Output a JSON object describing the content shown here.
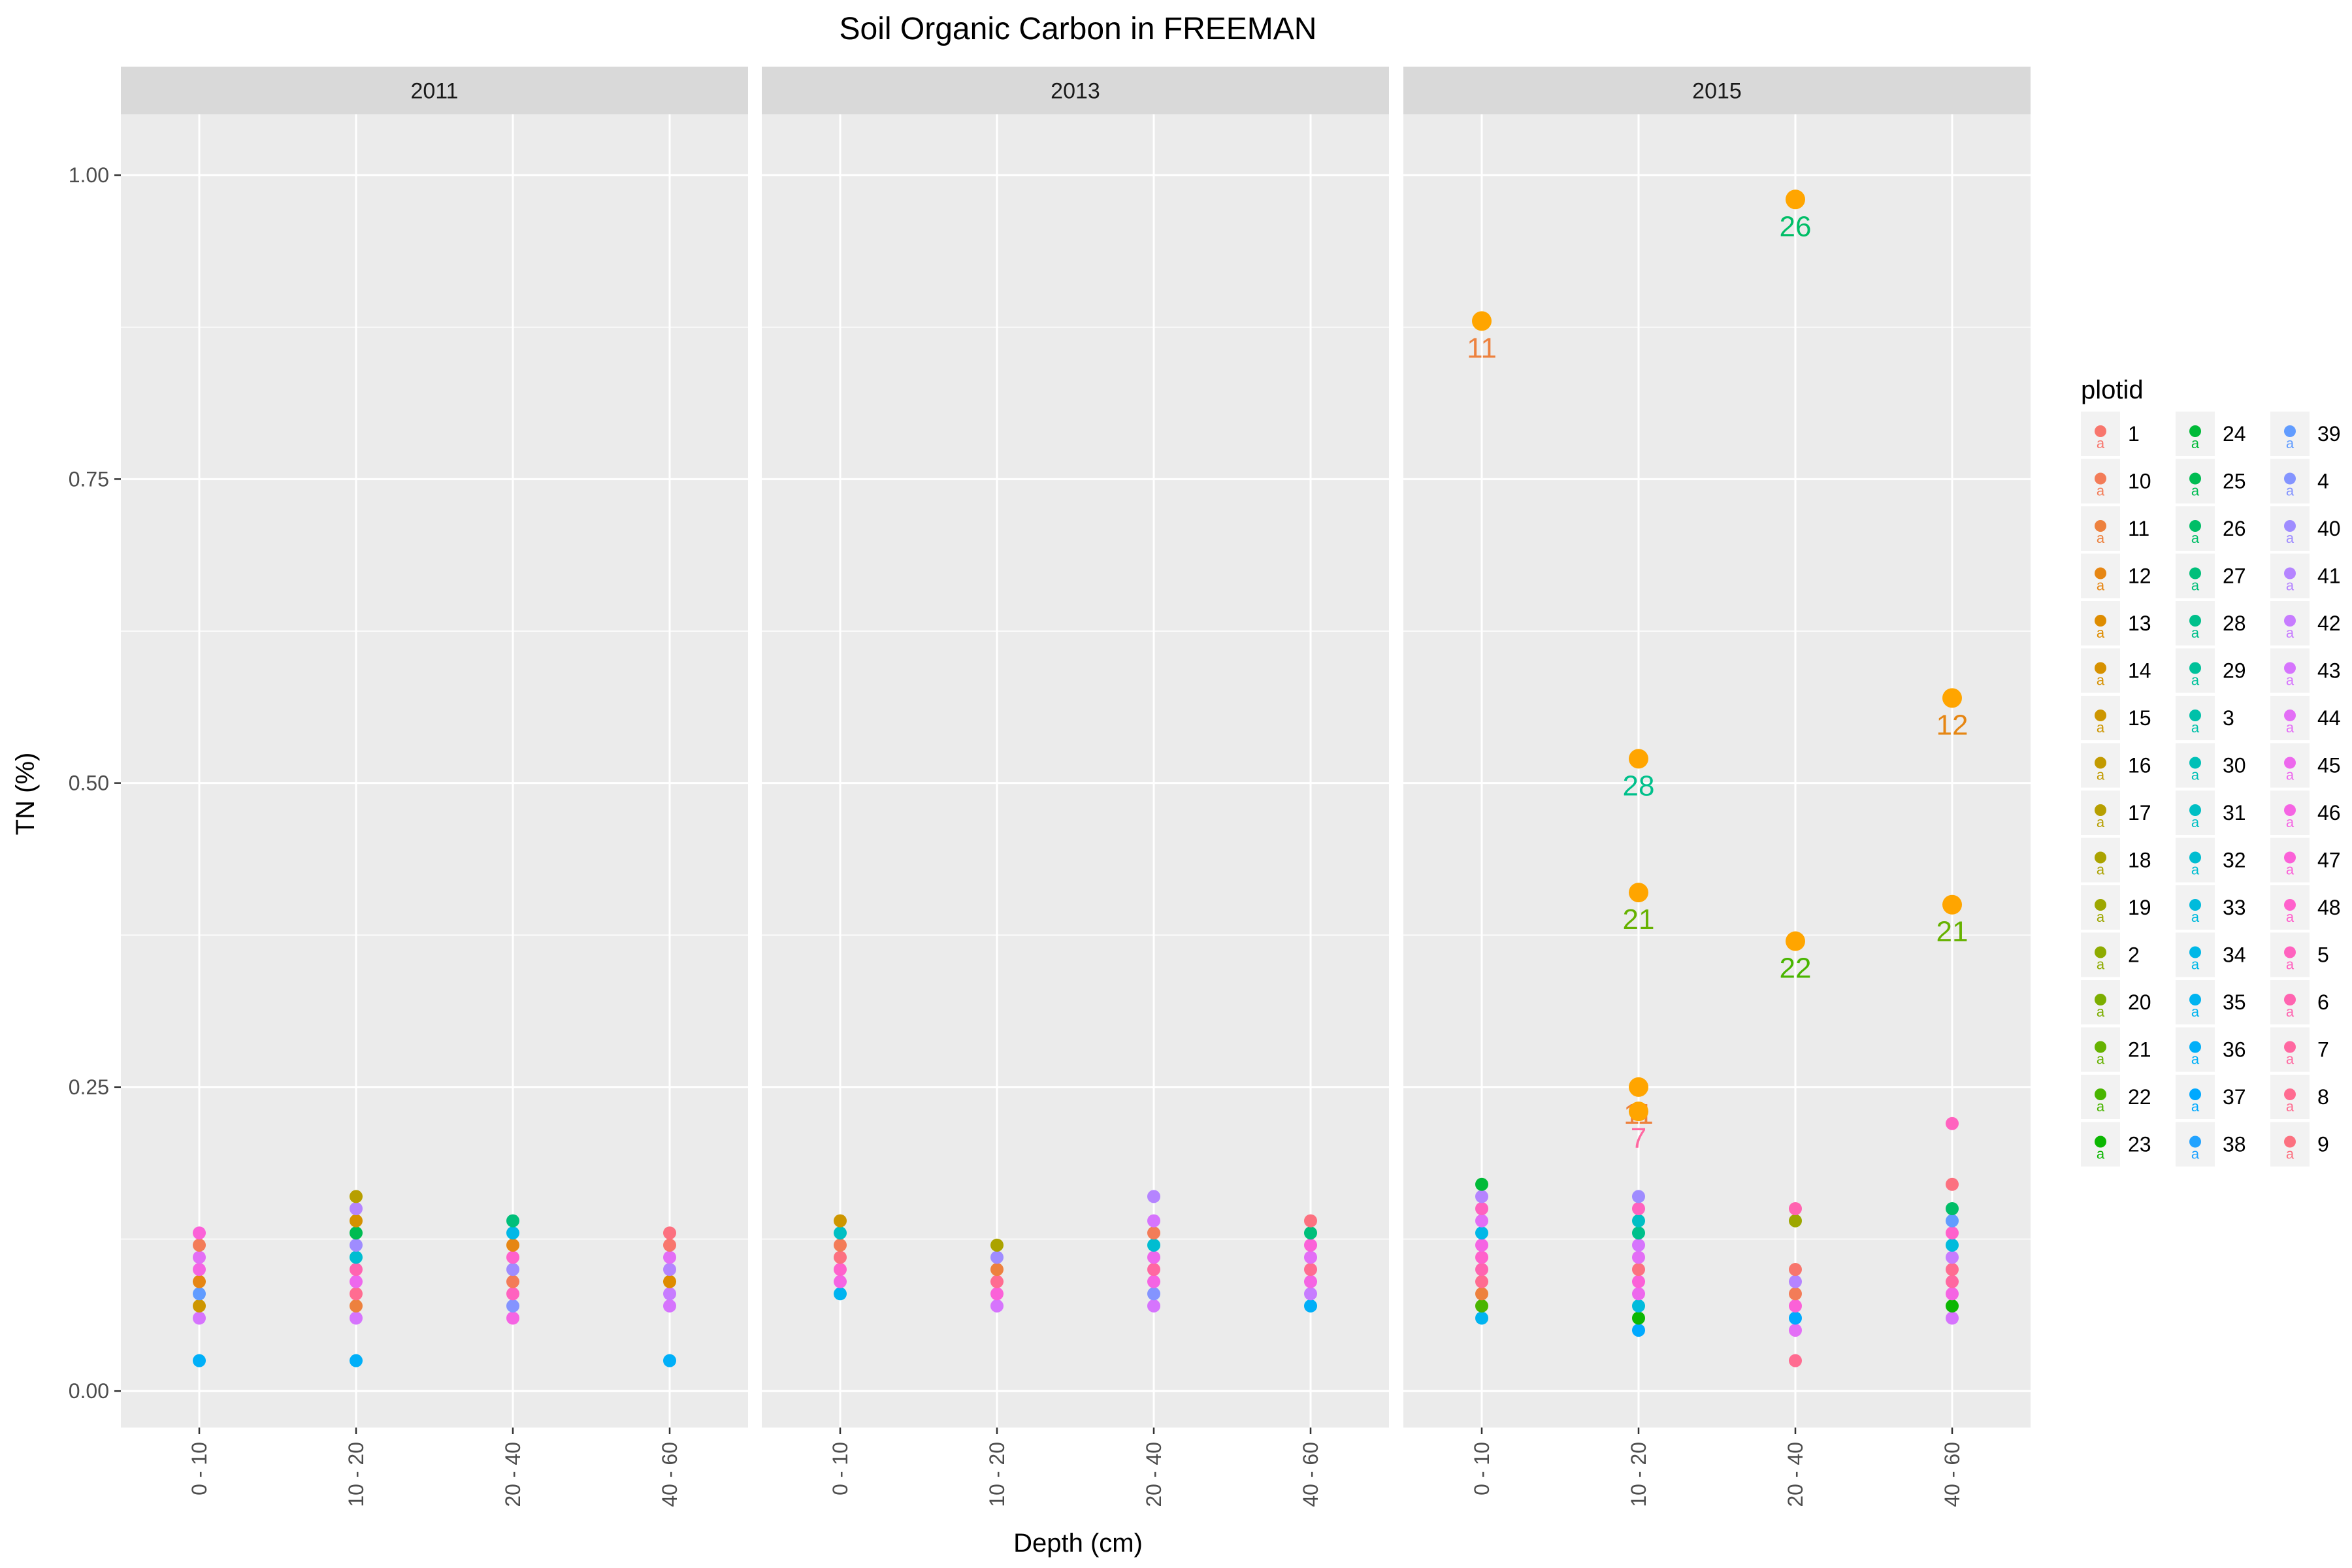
{
  "chart_data": {
    "type": "scatter",
    "title": "Soil Organic Carbon in FREEMAN",
    "xlabel": "Depth (cm)",
    "ylabel": "TN (%)",
    "categories": [
      "0 - 10",
      "10 - 20",
      "20 - 40",
      "40 - 60"
    ],
    "ylim": [
      -0.03,
      1.05
    ],
    "yticks": [
      "0.00",
      "0.25",
      "0.50",
      "0.75",
      "1.00"
    ],
    "grid": true,
    "legend_title": "plotid",
    "legend_position": "right",
    "plotids": [
      "1",
      "10",
      "11",
      "12",
      "13",
      "14",
      "15",
      "16",
      "17",
      "18",
      "19",
      "2",
      "20",
      "21",
      "22",
      "23",
      "24",
      "25",
      "26",
      "27",
      "28",
      "29",
      "3",
      "30",
      "31",
      "32",
      "33",
      "34",
      "35",
      "36",
      "37",
      "38",
      "39",
      "4",
      "40",
      "41",
      "42",
      "43",
      "44",
      "45",
      "46",
      "47",
      "48",
      "5",
      "6",
      "7",
      "8",
      "9"
    ],
    "highlight_color": "#FFA500",
    "panels": [
      {
        "label": "2011",
        "points": [
          {
            "depth": "0 - 10",
            "plotid": "36",
            "tn": 0.025
          },
          {
            "depth": "0 - 10",
            "plotid": "43",
            "tn": 0.06
          },
          {
            "depth": "0 - 10",
            "plotid": "15",
            "tn": 0.07
          },
          {
            "depth": "0 - 10",
            "plotid": "39",
            "tn": 0.08
          },
          {
            "depth": "0 - 10",
            "plotid": "12",
            "tn": 0.09
          },
          {
            "depth": "0 - 10",
            "plotid": "46",
            "tn": 0.1
          },
          {
            "depth": "0 - 10",
            "plotid": "44",
            "tn": 0.11
          },
          {
            "depth": "0 - 10",
            "plotid": "10",
            "tn": 0.12
          },
          {
            "depth": "0 - 10",
            "plotid": "47",
            "tn": 0.13
          },
          {
            "depth": "10 - 20",
            "plotid": "36",
            "tn": 0.025
          },
          {
            "depth": "10 - 20",
            "plotid": "43",
            "tn": 0.06
          },
          {
            "depth": "10 - 20",
            "plotid": "11",
            "tn": 0.07
          },
          {
            "depth": "10 - 20",
            "plotid": "8",
            "tn": 0.08
          },
          {
            "depth": "10 - 20",
            "plotid": "45",
            "tn": 0.09
          },
          {
            "depth": "10 - 20",
            "plotid": "6",
            "tn": 0.1
          },
          {
            "depth": "10 - 20",
            "plotid": "32",
            "tn": 0.11
          },
          {
            "depth": "10 - 20",
            "plotid": "40",
            "tn": 0.12
          },
          {
            "depth": "10 - 20",
            "plotid": "25",
            "tn": 0.13
          },
          {
            "depth": "10 - 20",
            "plotid": "14",
            "tn": 0.14
          },
          {
            "depth": "10 - 20",
            "plotid": "41",
            "tn": 0.15
          },
          {
            "depth": "10 - 20",
            "plotid": "17",
            "tn": 0.16
          },
          {
            "depth": "20 - 40",
            "plotid": "46",
            "tn": 0.06
          },
          {
            "depth": "20 - 40",
            "plotid": "4",
            "tn": 0.07
          },
          {
            "depth": "20 - 40",
            "plotid": "5",
            "tn": 0.08
          },
          {
            "depth": "20 - 40",
            "plotid": "10",
            "tn": 0.09
          },
          {
            "depth": "20 - 40",
            "plotid": "40",
            "tn": 0.1
          },
          {
            "depth": "20 - 40",
            "plotid": "48",
            "tn": 0.11
          },
          {
            "depth": "20 - 40",
            "plotid": "12",
            "tn": 0.12
          },
          {
            "depth": "20 - 40",
            "plotid": "34",
            "tn": 0.13
          },
          {
            "depth": "20 - 40",
            "plotid": "27",
            "tn": 0.14
          },
          {
            "depth": "40 - 60",
            "plotid": "36",
            "tn": 0.025
          },
          {
            "depth": "40 - 60",
            "plotid": "43",
            "tn": 0.07
          },
          {
            "depth": "40 - 60",
            "plotid": "42",
            "tn": 0.08
          },
          {
            "depth": "40 - 60",
            "plotid": "13",
            "tn": 0.09
          },
          {
            "depth": "40 - 60",
            "plotid": "41",
            "tn": 0.1
          },
          {
            "depth": "40 - 60",
            "plotid": "44",
            "tn": 0.11
          },
          {
            "depth": "40 - 60",
            "plotid": "1",
            "tn": 0.12
          },
          {
            "depth": "40 - 60",
            "plotid": "9",
            "tn": 0.13
          }
        ]
      },
      {
        "label": "2013",
        "points": [
          {
            "depth": "0 - 10",
            "plotid": "35",
            "tn": 0.08
          },
          {
            "depth": "0 - 10",
            "plotid": "46",
            "tn": 0.09
          },
          {
            "depth": "0 - 10",
            "plotid": "48",
            "tn": 0.1
          },
          {
            "depth": "0 - 10",
            "plotid": "9",
            "tn": 0.11
          },
          {
            "depth": "0 - 10",
            "plotid": "10",
            "tn": 0.12
          },
          {
            "depth": "0 - 10",
            "plotid": "31",
            "tn": 0.13
          },
          {
            "depth": "0 - 10",
            "plotid": "15",
            "tn": 0.14
          },
          {
            "depth": "10 - 20",
            "plotid": "43",
            "tn": 0.07
          },
          {
            "depth": "10 - 20",
            "plotid": "47",
            "tn": 0.08
          },
          {
            "depth": "10 - 20",
            "plotid": "8",
            "tn": 0.09
          },
          {
            "depth": "10 - 20",
            "plotid": "11",
            "tn": 0.1
          },
          {
            "depth": "10 - 20",
            "plotid": "40",
            "tn": 0.11
          },
          {
            "depth": "10 - 20",
            "plotid": "18",
            "tn": 0.12
          },
          {
            "depth": "20 - 40",
            "plotid": "43",
            "tn": 0.07
          },
          {
            "depth": "20 - 40",
            "plotid": "4",
            "tn": 0.08
          },
          {
            "depth": "20 - 40",
            "plotid": "46",
            "tn": 0.09
          },
          {
            "depth": "20 - 40",
            "plotid": "7",
            "tn": 0.1
          },
          {
            "depth": "20 - 40",
            "plotid": "45",
            "tn": 0.11
          },
          {
            "depth": "20 - 40",
            "plotid": "32",
            "tn": 0.12
          },
          {
            "depth": "20 - 40",
            "plotid": "10",
            "tn": 0.13
          },
          {
            "depth": "20 - 40",
            "plotid": "43",
            "tn": 0.14
          },
          {
            "depth": "20 - 40",
            "plotid": "41",
            "tn": 0.16
          },
          {
            "depth": "40 - 60",
            "plotid": "36",
            "tn": 0.07
          },
          {
            "depth": "40 - 60",
            "plotid": "42",
            "tn": 0.08
          },
          {
            "depth": "40 - 60",
            "plotid": "46",
            "tn": 0.09
          },
          {
            "depth": "40 - 60",
            "plotid": "8",
            "tn": 0.1
          },
          {
            "depth": "40 - 60",
            "plotid": "44",
            "tn": 0.11
          },
          {
            "depth": "40 - 60",
            "plotid": "47",
            "tn": 0.12
          },
          {
            "depth": "40 - 60",
            "plotid": "27",
            "tn": 0.13
          },
          {
            "depth": "40 - 60",
            "plotid": "9",
            "tn": 0.14
          }
        ]
      },
      {
        "label": "2015",
        "points": [
          {
            "depth": "0 - 10",
            "plotid": "35",
            "tn": 0.06
          },
          {
            "depth": "0 - 10",
            "plotid": "22",
            "tn": 0.07
          },
          {
            "depth": "0 - 10",
            "plotid": "11",
            "tn": 0.08
          },
          {
            "depth": "0 - 10",
            "plotid": "8",
            "tn": 0.09
          },
          {
            "depth": "0 - 10",
            "plotid": "6",
            "tn": 0.1
          },
          {
            "depth": "0 - 10",
            "plotid": "48",
            "tn": 0.11
          },
          {
            "depth": "0 - 10",
            "plotid": "46",
            "tn": 0.12
          },
          {
            "depth": "0 - 10",
            "plotid": "34",
            "tn": 0.13
          },
          {
            "depth": "0 - 10",
            "plotid": "44",
            "tn": 0.14
          },
          {
            "depth": "0 - 10",
            "plotid": "5",
            "tn": 0.15
          },
          {
            "depth": "0 - 10",
            "plotid": "41",
            "tn": 0.16
          },
          {
            "depth": "0 - 10",
            "plotid": "24",
            "tn": 0.17
          },
          {
            "depth": "10 - 20",
            "plotid": "37",
            "tn": 0.05
          },
          {
            "depth": "10 - 20",
            "plotid": "23",
            "tn": 0.06
          },
          {
            "depth": "10 - 20",
            "plotid": "33",
            "tn": 0.07
          },
          {
            "depth": "10 - 20",
            "plotid": "45",
            "tn": 0.08
          },
          {
            "depth": "10 - 20",
            "plotid": "47",
            "tn": 0.09
          },
          {
            "depth": "10 - 20",
            "plotid": "9",
            "tn": 0.1
          },
          {
            "depth": "10 - 20",
            "plotid": "44",
            "tn": 0.11
          },
          {
            "depth": "10 - 20",
            "plotid": "43",
            "tn": 0.12
          },
          {
            "depth": "10 - 20",
            "plotid": "28",
            "tn": 0.13
          },
          {
            "depth": "10 - 20",
            "plotid": "31",
            "tn": 0.14
          },
          {
            "depth": "10 - 20",
            "plotid": "5",
            "tn": 0.15
          },
          {
            "depth": "10 - 20",
            "plotid": "40",
            "tn": 0.16
          },
          {
            "depth": "20 - 40",
            "plotid": "8",
            "tn": 0.025
          },
          {
            "depth": "20 - 40",
            "plotid": "44",
            "tn": 0.05
          },
          {
            "depth": "20 - 40",
            "plotid": "37",
            "tn": 0.06
          },
          {
            "depth": "20 - 40",
            "plotid": "47",
            "tn": 0.07
          },
          {
            "depth": "20 - 40",
            "plotid": "10",
            "tn": 0.08
          },
          {
            "depth": "20 - 40",
            "plotid": "41",
            "tn": 0.09
          },
          {
            "depth": "20 - 40",
            "plotid": "1",
            "tn": 0.1
          },
          {
            "depth": "20 - 40",
            "plotid": "19",
            "tn": 0.14
          },
          {
            "depth": "20 - 40",
            "plotid": "6",
            "tn": 0.15
          },
          {
            "depth": "40 - 60",
            "plotid": "43",
            "tn": 0.06
          },
          {
            "depth": "40 - 60",
            "plotid": "23",
            "tn": 0.07
          },
          {
            "depth": "40 - 60",
            "plotid": "46",
            "tn": 0.08
          },
          {
            "depth": "40 - 60",
            "plotid": "7",
            "tn": 0.09
          },
          {
            "depth": "40 - 60",
            "plotid": "8",
            "tn": 0.1
          },
          {
            "depth": "40 - 60",
            "plotid": "42",
            "tn": 0.11
          },
          {
            "depth": "40 - 60",
            "plotid": "33",
            "tn": 0.12
          },
          {
            "depth": "40 - 60",
            "plotid": "48",
            "tn": 0.13
          },
          {
            "depth": "40 - 60",
            "plotid": "39",
            "tn": 0.14
          },
          {
            "depth": "40 - 60",
            "plotid": "26",
            "tn": 0.15
          },
          {
            "depth": "40 - 60",
            "plotid": "9",
            "tn": 0.17
          },
          {
            "depth": "40 - 60",
            "plotid": "5",
            "tn": 0.22
          }
        ],
        "highlights": [
          {
            "depth": "0 - 10",
            "tn": 0.88,
            "label": "11"
          },
          {
            "depth": "10 - 20",
            "tn": 0.52,
            "label": "28"
          },
          {
            "depth": "10 - 20",
            "tn": 0.41,
            "label": "21"
          },
          {
            "depth": "10 - 20",
            "tn": 0.25,
            "label": "11"
          },
          {
            "depth": "10 - 20",
            "tn": 0.23,
            "label": "7"
          },
          {
            "depth": "20 - 40",
            "tn": 0.98,
            "label": "26"
          },
          {
            "depth": "20 - 40",
            "tn": 0.37,
            "label": "22"
          },
          {
            "depth": "40 - 60",
            "tn": 0.57,
            "label": "12"
          },
          {
            "depth": "40 - 60",
            "tn": 0.4,
            "label": "21"
          }
        ]
      }
    ]
  }
}
